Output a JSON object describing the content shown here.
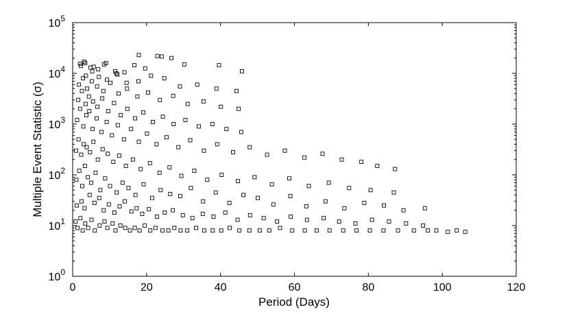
{
  "chart_data": {
    "type": "scatter",
    "title": "",
    "xlabel": "Period (Days)",
    "ylabel": "Multiple Event Statistic (σ)",
    "xlim": [
      0,
      120
    ],
    "ylim_log10": [
      0,
      5
    ],
    "yscale": "log",
    "grid": false,
    "legend": "none",
    "marker": "open-square",
    "marker_color": "#000000",
    "xticks": [
      "0",
      "20",
      "40",
      "60",
      "80",
      "100",
      "120"
    ],
    "yticks": [
      {
        "base": "10",
        "exp": "0"
      },
      {
        "base": "10",
        "exp": "1"
      },
      {
        "base": "10",
        "exp": "2"
      },
      {
        "base": "10",
        "exp": "3"
      },
      {
        "base": "10",
        "exp": "4"
      },
      {
        "base": "10",
        "exp": "5"
      }
    ],
    "series": [
      {
        "x": [
          0.8,
          1.3,
          2.1,
          2.7,
          3.4,
          4.2,
          5.1,
          6.0,
          7.3,
          8.6,
          9.4,
          10.8,
          11.6,
          12.9,
          14.2,
          15.5,
          16.8,
          18.1,
          19.5,
          21.0,
          22.4,
          24.3,
          25.9,
          27.5,
          29.2,
          31.0,
          33.4,
          35.6,
          37.9,
          40.2,
          42.5,
          45.1,
          47.8,
          50.6,
          53.2,
          56.1,
          59.4,
          62.8,
          66.0,
          69.5,
          73.2,
          76.8,
          80.4,
          84.1,
          88.0,
          92.3,
          96.1,
          98.4,
          101.5,
          103.9,
          106.2,
          1.1,
          2.4,
          3.2,
          4.6,
          5.9,
          7.2,
          8.4,
          9.8,
          11.3,
          12.7,
          14.1,
          15.9,
          17.3,
          18.8,
          20.6,
          22.8,
          24.9,
          27.1,
          29.8,
          32.4,
          35.2,
          38.1,
          41.3,
          44.6,
          48.0,
          51.7,
          55.3,
          59.0,
          63.4,
          67.9,
          72.1,
          76.5,
          81.0,
          85.6,
          90.2,
          94.8,
          1.0,
          1.8,
          2.6,
          3.3,
          4.1,
          5.0,
          6.2,
          7.5,
          8.8,
          10.1,
          11.9,
          13.5,
          15.1,
          17.0,
          19.2,
          21.5,
          23.8,
          26.4,
          29.1,
          32.0,
          35.3,
          38.7,
          42.4,
          46.2,
          50.1,
          54.3,
          58.9,
          63.2,
          68.4,
          73.5,
          78.9,
          84.2,
          89.5,
          95.3,
          0.9,
          1.6,
          2.3,
          3.0,
          3.8,
          4.7,
          5.6,
          6.8,
          8.1,
          9.5,
          11.0,
          12.6,
          14.4,
          16.3,
          18.4,
          20.9,
          23.5,
          26.2,
          29.4,
          32.9,
          36.4,
          40.3,
          44.7,
          49.2,
          53.9,
          58.6,
          63.9,
          69.3,
          74.8,
          80.6,
          86.9,
          1.2,
          2.0,
          2.9,
          3.7,
          4.5,
          5.4,
          6.5,
          7.8,
          9.2,
          10.6,
          12.2,
          13.9,
          15.8,
          17.9,
          20.1,
          22.7,
          25.4,
          28.6,
          31.8,
          35.5,
          39.1,
          43.4,
          47.9,
          52.6,
          57.4,
          62.7,
          67.6,
          72.8,
          78.1,
          82.4,
          87.2,
          1.5,
          2.5,
          3.5,
          4.4,
          5.5,
          6.7,
          8.0,
          9.6,
          11.2,
          13.0,
          14.8,
          16.9,
          19.1,
          21.7,
          24.4,
          27.3,
          30.5,
          34.1,
          37.8,
          41.6,
          45.6,
          1.7,
          2.8,
          3.9,
          5.2,
          6.6,
          8.3,
          10.2,
          12.4,
          14.7,
          17.5,
          20.4,
          23.6,
          27.2,
          31.1,
          35.4,
          40.1,
          44.9,
          2.2,
          3.6,
          5.3,
          7.1,
          9.3,
          11.8,
          14.6,
          17.8,
          21.2,
          24.8,
          29.0,
          33.7,
          38.9,
          44.3,
          2.0,
          3.1,
          4.8,
          6.9,
          9.0,
          11.5,
          14.0,
          16.7,
          19.6,
          22.9,
          26.7,
          3.4,
          5.7,
          8.5,
          12.1,
          17.9,
          24.1,
          30.2,
          39.6,
          45.8
        ],
        "y": [
          12,
          9,
          14,
          8,
          11,
          9,
          13,
          8,
          10,
          12,
          9,
          11,
          8,
          10,
          9,
          8,
          9,
          8,
          10,
          8,
          9,
          8,
          8,
          9,
          8,
          8,
          9,
          8,
          8,
          8,
          9,
          8,
          8,
          8,
          8,
          9,
          8,
          8,
          8,
          8,
          8,
          8,
          8,
          8,
          8,
          8,
          8,
          8,
          7.5,
          8,
          7.5,
          25,
          30,
          22,
          40,
          28,
          35,
          20,
          26,
          18,
          24,
          30,
          19,
          22,
          17,
          21,
          15,
          18,
          20,
          16,
          14,
          17,
          15,
          18,
          13,
          16,
          14,
          12,
          15,
          13,
          14,
          12,
          11,
          13,
          12,
          11,
          10,
          80,
          120,
          60,
          150,
          90,
          70,
          110,
          50,
          85,
          60,
          45,
          70,
          55,
          40,
          65,
          35,
          50,
          42,
          38,
          55,
          30,
          45,
          28,
          40,
          35,
          26,
          38,
          24,
          30,
          22,
          28,
          25,
          20,
          22,
          300,
          500,
          250,
          400,
          350,
          280,
          450,
          200,
          320,
          260,
          180,
          240,
          150,
          200,
          130,
          170,
          110,
          140,
          95,
          120,
          80,
          100,
          75,
          90,
          65,
          85,
          60,
          70,
          55,
          50,
          45,
          1200,
          2000,
          900,
          1500,
          1800,
          800,
          1300,
          700,
          1100,
          600,
          950,
          500,
          800,
          450,
          650,
          400,
          550,
          350,
          480,
          300,
          400,
          280,
          350,
          250,
          300,
          220,
          260,
          200,
          180,
          150,
          130,
          3000,
          4500,
          2500,
          3500,
          2800,
          2200,
          3200,
          1800,
          2600,
          1500,
          2000,
          1300,
          1700,
          1100,
          1400,
          1000,
          1200,
          900,
          1000,
          800,
          700,
          6000,
          8000,
          5000,
          7000,
          5500,
          4500,
          6500,
          4000,
          5000,
          3500,
          4200,
          3000,
          3600,
          2500,
          2800,
          2200,
          2000,
          14000,
          9000,
          11000,
          8500,
          7500,
          10000,
          6500,
          7000,
          9000,
          8000,
          5500,
          6000,
          5000,
          4500,
          15500,
          17000,
          13000,
          12000,
          16000,
          11000,
          10500,
          14500,
          12500,
          22000,
          20000,
          16000,
          13500,
          15000,
          9500,
          23000,
          21500,
          15000,
          14500,
          11000
        ]
      }
    ]
  }
}
